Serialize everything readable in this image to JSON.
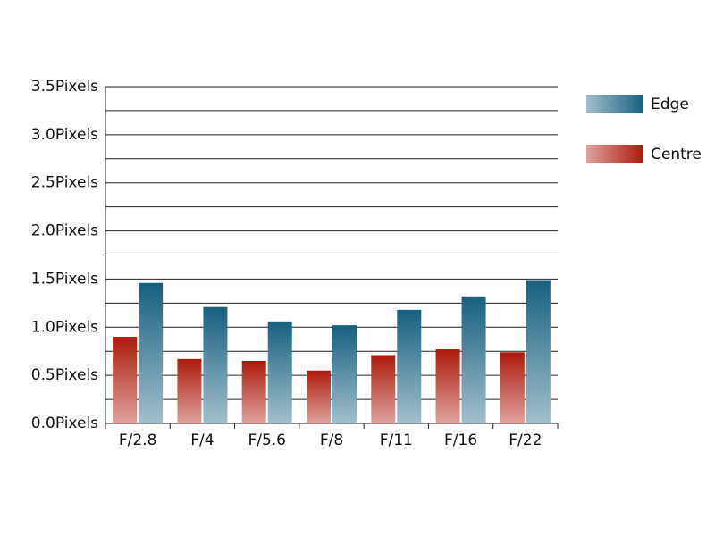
{
  "chart_data": {
    "type": "bar",
    "categories": [
      "F/2.8",
      "F/4",
      "F/5.6",
      "F/8",
      "F/11",
      "F/16",
      "F/22"
    ],
    "series": [
      {
        "name": "Centre",
        "color": "#ad1a0c",
        "values": [
          0.9,
          0.67,
          0.65,
          0.55,
          0.71,
          0.77,
          0.74
        ]
      },
      {
        "name": "Edge",
        "color": "#17607f",
        "values": [
          1.46,
          1.21,
          1.06,
          1.02,
          1.18,
          1.32,
          1.49
        ]
      }
    ],
    "ylim": [
      0,
      3.5
    ],
    "yticks": [
      {
        "value": 0,
        "label": "0.0Pixels"
      },
      {
        "value": 0.5,
        "label": "0.5Pixels"
      },
      {
        "value": 1,
        "label": "1.0Pixels"
      },
      {
        "value": 1.5,
        "label": "1.5Pixels"
      },
      {
        "value": 2,
        "label": "2.0Pixels"
      },
      {
        "value": 2.5,
        "label": "2.5Pixels"
      },
      {
        "value": 3,
        "label": "3.0Pixels"
      },
      {
        "value": 3.5,
        "label": "3.5Pixels"
      }
    ],
    "grid": true,
    "legend": "right"
  }
}
